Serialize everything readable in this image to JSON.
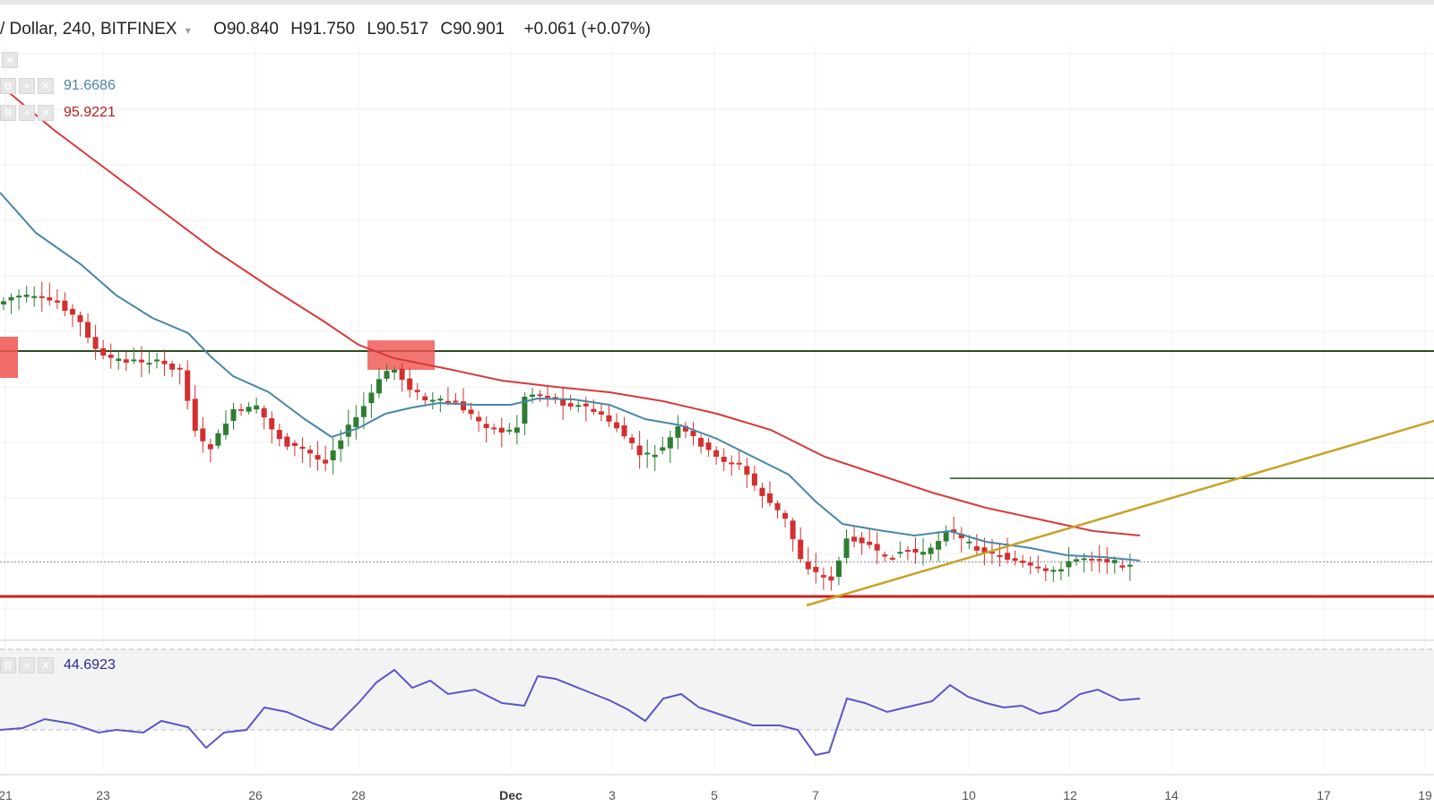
{
  "header": {
    "symbol": "/ Dollar, 240, BITFINEX",
    "open_label": "O",
    "open": "90.840",
    "high_label": "H",
    "high": "91.750",
    "low_label": "L",
    "low": "90.517",
    "close_label": "C",
    "close": "90.901",
    "change": "+0.061 (+0.07%)"
  },
  "indicators": {
    "ema_fast": "91.6686",
    "ema_slow": "95.9221",
    "rsi": "44.6923"
  },
  "colors": {
    "up": "#2e7d32",
    "down": "#d32f2f",
    "ema_fast": "#4a86a8",
    "ema_slow": "#d63a3a",
    "rsi": "#5b55c9",
    "resistance": "#2e4d1f",
    "support": "#cc1f1f",
    "trendline": "#c9a227",
    "highlight": "#ef5350"
  },
  "chart_data": {
    "type": "candlestick",
    "x_ticks": [
      "21",
      "23",
      "26",
      "28",
      "Dec",
      "3",
      "5",
      "7",
      "10",
      "12",
      "14",
      "17",
      "19"
    ],
    "price_levels": {
      "resistance": 102.5,
      "secondary_resistance": 95.5,
      "support": 89.0,
      "last_price": 90.9
    },
    "rsi_bands": [
      30,
      70
    ]
  }
}
